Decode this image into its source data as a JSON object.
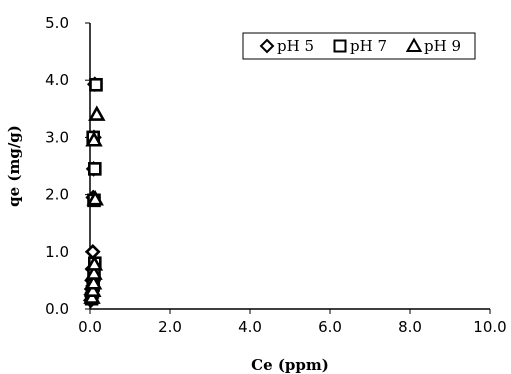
{
  "chart_data": {
    "type": "scatter",
    "xlabel": "Ce (ppm)",
    "ylabel": "qe (mg/g)",
    "xlim": [
      0,
      10
    ],
    "ylim": [
      0,
      5
    ],
    "x_ticks": [
      "0.0",
      "2.0",
      "4.0",
      "6.0",
      "8.0",
      "10.0"
    ],
    "y_ticks": [
      "0.0",
      "1.0",
      "2.0",
      "3.0",
      "4.0",
      "5.0"
    ],
    "grid": false,
    "legend_position": "top-right",
    "series": [
      {
        "name": "pH 5",
        "marker": "diamond",
        "points": [
          [
            0.02,
            0.15
          ],
          [
            0.03,
            0.25
          ],
          [
            0.04,
            0.35
          ],
          [
            0.05,
            0.5
          ],
          [
            0.06,
            0.7
          ],
          [
            0.07,
            1.0
          ],
          [
            0.08,
            1.95
          ],
          [
            0.09,
            2.45
          ],
          [
            0.1,
            3.0
          ],
          [
            0.12,
            3.93
          ]
        ]
      },
      {
        "name": "pH 7",
        "marker": "square",
        "points": [
          [
            0.04,
            0.18
          ],
          [
            0.06,
            0.3
          ],
          [
            0.08,
            0.42
          ],
          [
            0.1,
            0.6
          ],
          [
            0.12,
            0.8
          ],
          [
            0.1,
            1.9
          ],
          [
            0.12,
            2.45
          ],
          [
            0.08,
            3.0
          ],
          [
            0.15,
            3.92
          ]
        ]
      },
      {
        "name": "pH 9",
        "marker": "triangle",
        "points": [
          [
            0.05,
            0.2
          ],
          [
            0.07,
            0.32
          ],
          [
            0.09,
            0.45
          ],
          [
            0.1,
            0.62
          ],
          [
            0.11,
            0.78
          ],
          [
            0.13,
            1.92
          ],
          [
            0.1,
            2.95
          ],
          [
            0.17,
            3.4
          ]
        ]
      }
    ]
  }
}
